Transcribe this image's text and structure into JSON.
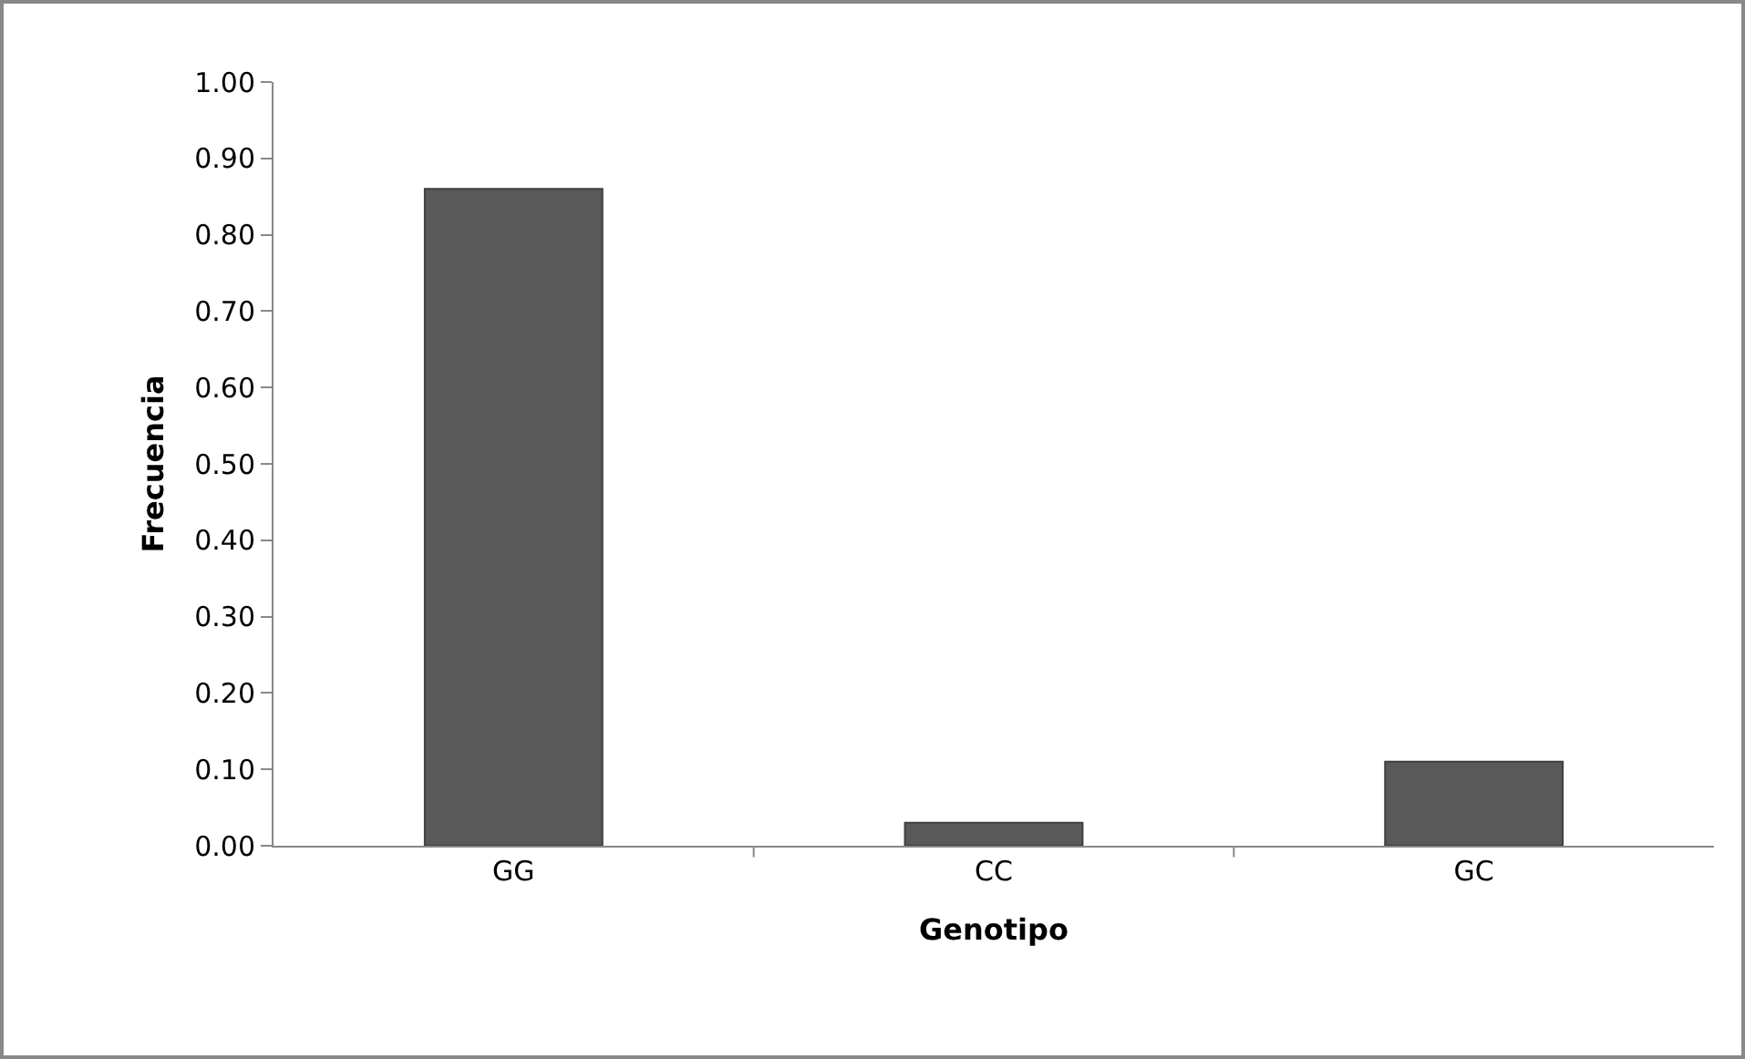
{
  "chart_data": {
    "type": "bar",
    "xlabel": "Genotipo",
    "ylabel": "Frecuencia",
    "categories": [
      "GG",
      "CC",
      "GC"
    ],
    "values": [
      0.86,
      0.03,
      0.11
    ],
    "color": "#595959",
    "ylim": [
      0,
      1
    ],
    "yticks": [
      {
        "value": 0,
        "label": "0.00"
      },
      {
        "value": 0.1,
        "label": "0.10"
      },
      {
        "value": 0.2,
        "label": "0.20"
      },
      {
        "value": 0.3,
        "label": "0.30"
      },
      {
        "value": 0.4,
        "label": "0.40"
      },
      {
        "value": 0.5,
        "label": "0.50"
      },
      {
        "value": 0.6,
        "label": "0.60"
      },
      {
        "value": 0.7,
        "label": "0.70"
      },
      {
        "value": 0.8,
        "label": "0.80"
      },
      {
        "value": 0.9,
        "label": "0.90"
      },
      {
        "value": 1,
        "label": "1.00"
      }
    ],
    "grid": false
  }
}
